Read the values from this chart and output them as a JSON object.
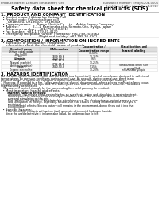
{
  "header_left": "Product Name: Lithium Ion Battery Cell",
  "header_right": "Substance number: SMBJF120A-0001\nEstablished / Revision: Dec.1,2010",
  "title": "Safety data sheet for chemical products (SDS)",
  "section1_title": "1. PRODUCT AND COMPANY IDENTIFICATION",
  "section1_lines": [
    "  • Product name: Lithium Ion Battery Cell",
    "  • Product code: Cylindrical-type cell",
    "       UR18650U, UR18650E, UR18650A",
    "  • Company name:      Sanyo Electric Co., Ltd.  Mobile Energy Company",
    "  • Address:              2-1-1  Kamionaka-cho, Sumoto-City, Hyogo, Japan",
    "  • Telephone number:   +81-(799)-20-4111",
    "  • Fax number:  +81-1-799-20-4120",
    "  • Emergency telephone number (Weekday) +81-799-20-3962",
    "                                      (Night and holiday) +81-799-20-4101"
  ],
  "section2_title": "2. COMPOSITION / INFORMATION ON INGREDIENTS",
  "section2_lines": [
    "  • Substance or preparation: Preparation",
    "  • Information about the chemical nature of product:"
  ],
  "table_col_headers": [
    "Chemical name",
    "CAS number",
    "Concentration /\nConcentration range",
    "Classification and\nhazard labeling"
  ],
  "table_rows": [
    [
      "Lithium cobalt oxide\n(LiMn-CoO2)",
      "-",
      "30-60%",
      ""
    ],
    [
      "Iron",
      "7439-89-6",
      "10-25%",
      "-"
    ],
    [
      "Aluminum",
      "7429-90-5",
      "2-6%",
      "-"
    ],
    [
      "Graphite\n(Natural graphite)\n(Artificial graphite)",
      "7782-42-5\n7782-64-4",
      "10-25%",
      ""
    ],
    [
      "Copper",
      "7440-50-8",
      "5-15%",
      "Sensitization of the skin\ngroup No.2"
    ],
    [
      "Organic electrolyte",
      "-",
      "10-20%",
      "Inflammatory liquid"
    ]
  ],
  "section3_title": "3. HAZARDS IDENTIFICATION",
  "section3_body_lines": [
    "For the battery cell, chemical materials are stored in a hermetically sealed metal case, designed to withstand",
    "temperatures by pressure-conditions during normal use. As a result, during normal use, there is no",
    "physical danger of ignition or explosion and thermal/changes of hazardous materials leakage.",
    "   However, if exposed to a fire, added mechanical shocks, decomposed, where electro mechanical may occur,",
    "the gas release reaction be operated. The battery cell case will be breached at the extreme. Hazardous",
    "materials may be released.",
    "   Moreover, if heated strongly by the surrounding fire, solid gas may be emitted."
  ],
  "section3_sub1": "  • Most important hazard and effects:",
  "section3_human_label": "      Human health effects:",
  "section3_human_lines": [
    "         Inhalation: The release of the electrolyte has an anesthesia action and stimulates in respiratory tract.",
    "         Skin contact: The release of the electrolyte stimulates a skin. The electrolyte skin contact causes a",
    "         sore and stimulation on the skin.",
    "         Eye contact: The release of the electrolyte stimulates eyes. The electrolyte eye contact causes a sore",
    "         and stimulation on the eye. Especially, a substance that causes a strong inflammation of the eyes is",
    "         contained.",
    "         Environmental effects: Since a battery cell remains in the environment, do not throw out it into the",
    "         environment."
  ],
  "section3_specific": "  • Specific hazards:",
  "section3_specific_lines": [
    "      If the electrolyte contacts with water, it will generate detrimental hydrogen fluoride.",
    "      Since the used electrolyte is inflammable liquid, do not bring close to fire."
  ],
  "bg_color": "#ffffff",
  "text_color": "#000000",
  "line_color": "#aaaaaa",
  "table_header_bg": "#dddddd"
}
